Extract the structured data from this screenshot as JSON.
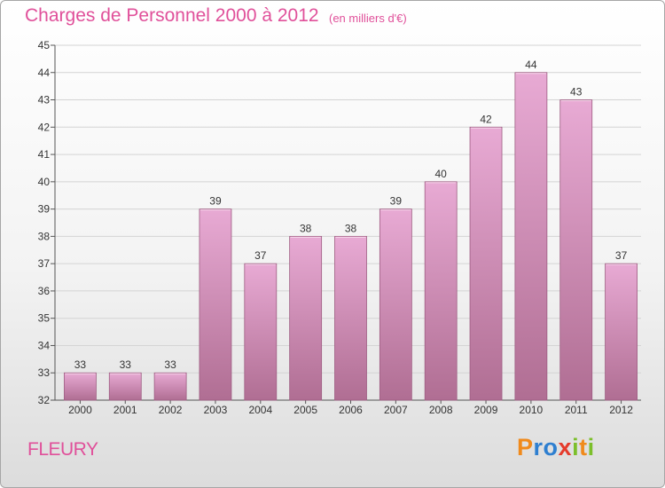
{
  "header": {
    "title": "Charges de Personnel 2000 à 2012",
    "subtitle": "(en milliers d'€)"
  },
  "footer": {
    "city": "FLEURY",
    "brand": "Proxiti",
    "brand_letters": [
      {
        "char": "P",
        "color": "#f08a1c"
      },
      {
        "char": "r",
        "color": "#2e7fd0"
      },
      {
        "char": "o",
        "color": "#2e7fd0"
      },
      {
        "char": "x",
        "color": "#e53b2c"
      },
      {
        "char": "i",
        "color": "#7cbf2b"
      },
      {
        "char": "t",
        "color": "#f08a1c"
      },
      {
        "char": "i",
        "color": "#7cbf2b"
      }
    ]
  },
  "colors": {
    "accent": "#e0509a",
    "bar_light": "#e6a8d0",
    "bar_dark": "#b06e93"
  },
  "chart_data": {
    "type": "bar",
    "categories": [
      "2000",
      "2001",
      "2002",
      "2003",
      "2004",
      "2005",
      "2006",
      "2007",
      "2008",
      "2009",
      "2010",
      "2011",
      "2012"
    ],
    "values": [
      33,
      33,
      33,
      39,
      37,
      38,
      38,
      39,
      40,
      42,
      44,
      43,
      37
    ],
    "title": "Charges de Personnel 2000 à 2012",
    "subtitle": "(en milliers d'€)",
    "xlabel": "",
    "ylabel": "",
    "ylim": [
      32,
      45
    ],
    "yticks": [
      32,
      33,
      34,
      35,
      36,
      37,
      38,
      39,
      40,
      41,
      42,
      43,
      44,
      45
    ],
    "grid": true,
    "legend": "none"
  }
}
